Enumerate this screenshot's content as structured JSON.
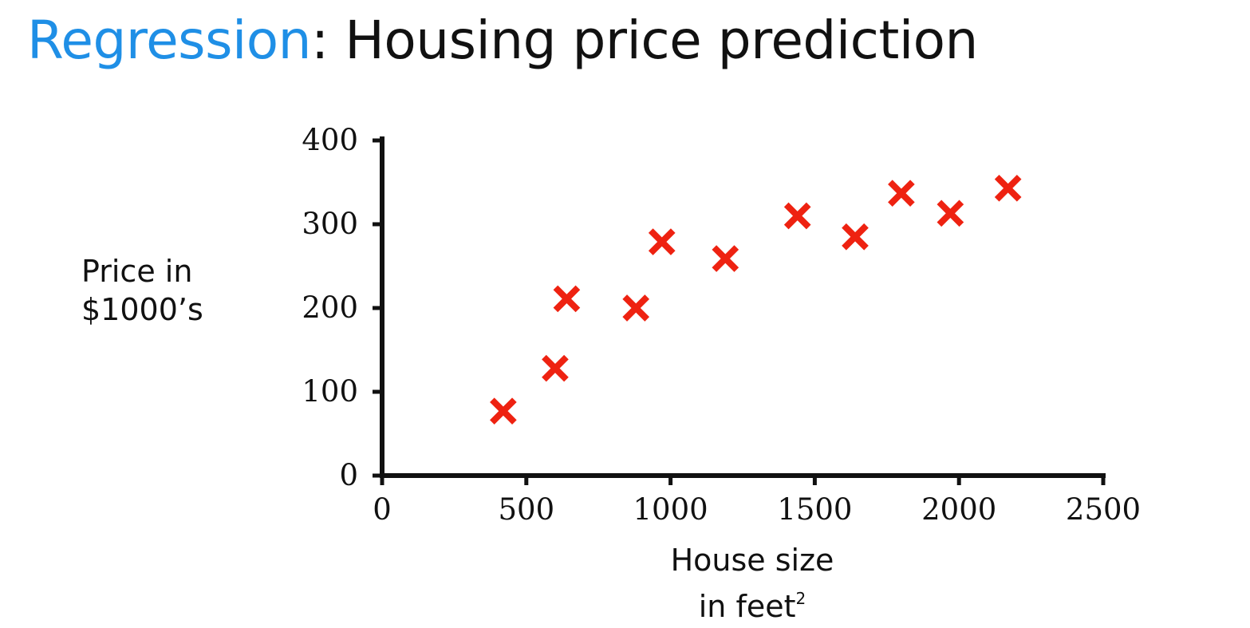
{
  "title": {
    "keyword": "Regression",
    "rest": ": Housing price prediction",
    "keyword_color": "#1f8fe6"
  },
  "chart_data": {
    "type": "scatter",
    "ylabel_lines": [
      "Price in",
      "$1000’s"
    ],
    "xlabel_text": "House size",
    "xlabel_line2": "in feet",
    "xlabel_sup": "2",
    "xlim": [
      0,
      2500
    ],
    "ylim": [
      0,
      400
    ],
    "xticks": [
      0,
      500,
      1000,
      1500,
      2000,
      2500
    ],
    "yticks": [
      0,
      100,
      200,
      300,
      400
    ],
    "marker": "x",
    "marker_color": "#ee2211",
    "grid": false,
    "points": [
      {
        "x": 420,
        "y": 77
      },
      {
        "x": 600,
        "y": 128
      },
      {
        "x": 640,
        "y": 211
      },
      {
        "x": 880,
        "y": 200
      },
      {
        "x": 970,
        "y": 279
      },
      {
        "x": 1190,
        "y": 259
      },
      {
        "x": 1440,
        "y": 310
      },
      {
        "x": 1640,
        "y": 285
      },
      {
        "x": 1800,
        "y": 337
      },
      {
        "x": 1970,
        "y": 313
      },
      {
        "x": 2170,
        "y": 343
      }
    ]
  }
}
